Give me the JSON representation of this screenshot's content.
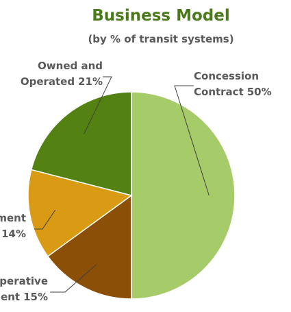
{
  "chart_data": {
    "type": "pie",
    "title": "Business Model",
    "subtitle": "(by % of transit systems)",
    "categories": [
      "Concession Contract",
      "Cooperative Agreement",
      "Management Contract",
      "Owned and Operated"
    ],
    "values": [
      50,
      15,
      14,
      21
    ],
    "value_labels": [
      "50%",
      "15%",
      "14%",
      "21%"
    ],
    "colors": [
      "#a6cb69",
      "#8b4f08",
      "#d99a14",
      "#538213"
    ]
  }
}
